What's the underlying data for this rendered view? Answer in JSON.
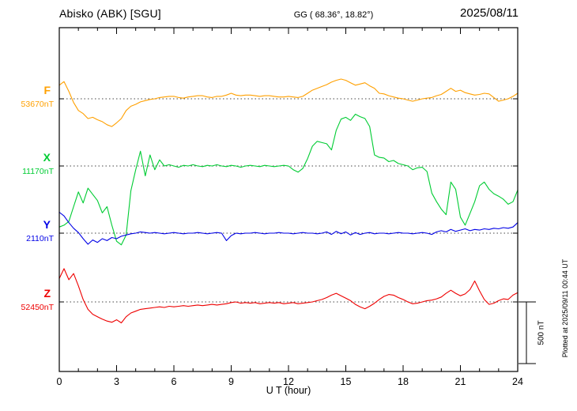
{
  "chart_data": {
    "type": "line",
    "station": "Abisko (ABK)  [SGU]",
    "coords": "GG ( 68.36°, 18.82°)",
    "date": "2025/08/11",
    "xlabel": "U T (hour)",
    "footnote": "Plotted at 2025/09/11 00:44 UT",
    "x_range": [
      0,
      24
    ],
    "x_ticks": [
      0,
      3,
      6,
      9,
      12,
      15,
      18,
      21,
      24
    ],
    "x_start": 0,
    "x_step_hours": 0.25,
    "units": "nT offset from component baseline",
    "scale_bar": {
      "label": "500 nT",
      "nT": 500
    },
    "series": [
      {
        "name": "F",
        "baseline_label": "53670nT",
        "color": "#FFA000",
        "values": [
          110,
          140,
          60,
          -30,
          -95,
          -120,
          -160,
          -150,
          -170,
          -185,
          -210,
          -225,
          -195,
          -160,
          -95,
          -60,
          -45,
          -25,
          -15,
          -5,
          0,
          10,
          15,
          20,
          20,
          10,
          5,
          15,
          20,
          25,
          25,
          15,
          10,
          20,
          20,
          30,
          45,
          30,
          25,
          30,
          30,
          25,
          20,
          25,
          25,
          20,
          15,
          15,
          20,
          15,
          10,
          20,
          45,
          70,
          85,
          100,
          115,
          135,
          150,
          160,
          150,
          130,
          110,
          120,
          130,
          105,
          85,
          45,
          40,
          25,
          15,
          5,
          0,
          -10,
          -20,
          -10,
          0,
          5,
          10,
          25,
          35,
          60,
          85,
          60,
          70,
          50,
          40,
          30,
          35,
          45,
          40,
          10,
          -20,
          -10,
          0,
          20,
          45
        ]
      },
      {
        "name": "X",
        "baseline_label": "11170nT",
        "color": "#00CC33",
        "values": [
          -495,
          -480,
          -450,
          -330,
          -210,
          -300,
          -180,
          -230,
          -280,
          -380,
          -330,
          -480,
          -610,
          -640,
          -560,
          -200,
          -30,
          120,
          -80,
          90,
          -30,
          50,
          0,
          10,
          0,
          -10,
          5,
          0,
          10,
          0,
          -5,
          5,
          0,
          10,
          0,
          -5,
          5,
          0,
          -10,
          0,
          5,
          0,
          -5,
          5,
          0,
          -5,
          0,
          5,
          0,
          -30,
          -50,
          -20,
          60,
          160,
          200,
          190,
          180,
          130,
          290,
          380,
          395,
          370,
          420,
          400,
          385,
          320,
          90,
          70,
          65,
          35,
          45,
          20,
          10,
          0,
          -30,
          -15,
          -10,
          -45,
          -220,
          -290,
          -350,
          -395,
          -130,
          -190,
          -415,
          -480,
          -385,
          -290,
          -160,
          -130,
          -190,
          -225,
          -245,
          -270,
          -310,
          -290,
          -195
        ]
      },
      {
        "name": "Y",
        "baseline_label": "2110nT",
        "color": "#0000E6",
        "values": [
          170,
          140,
          85,
          40,
          5,
          -45,
          -90,
          -55,
          -75,
          -45,
          -60,
          -35,
          -45,
          -25,
          -15,
          -5,
          0,
          10,
          5,
          0,
          5,
          0,
          -5,
          0,
          5,
          0,
          -5,
          0,
          0,
          5,
          0,
          -5,
          0,
          5,
          0,
          -60,
          -20,
          0,
          -5,
          0,
          0,
          5,
          0,
          -5,
          0,
          0,
          5,
          0,
          0,
          -5,
          0,
          5,
          0,
          0,
          -5,
          0,
          10,
          -10,
          15,
          -5,
          10,
          -15,
          5,
          -10,
          0,
          5,
          -5,
          0,
          0,
          -5,
          0,
          5,
          0,
          0,
          -5,
          0,
          5,
          0,
          -10,
          10,
          20,
          10,
          30,
          15,
          25,
          35,
          20,
          30,
          25,
          35,
          30,
          40,
          35,
          45,
          40,
          50,
          85
        ]
      },
      {
        "name": "Z",
        "baseline_label": "52450nT",
        "color": "#EE0000",
        "values": [
          190,
          270,
          180,
          230,
          130,
          20,
          -60,
          -100,
          -120,
          -140,
          -155,
          -165,
          -145,
          -170,
          -120,
          -90,
          -75,
          -60,
          -55,
          -50,
          -45,
          -40,
          -45,
          -35,
          -40,
          -35,
          -30,
          -35,
          -30,
          -25,
          -30,
          -25,
          -20,
          -25,
          -20,
          -15,
          -5,
          0,
          -10,
          -5,
          -10,
          -5,
          -15,
          -10,
          -5,
          -10,
          -5,
          -15,
          -10,
          -5,
          -15,
          -10,
          -5,
          0,
          10,
          20,
          35,
          55,
          70,
          50,
          30,
          10,
          -20,
          -40,
          -55,
          -35,
          -10,
          20,
          45,
          60,
          55,
          35,
          20,
          0,
          -15,
          -10,
          0,
          10,
          15,
          25,
          40,
          70,
          95,
          70,
          50,
          65,
          100,
          170,
          90,
          20,
          -20,
          -10,
          10,
          25,
          20,
          55,
          75
        ]
      }
    ]
  }
}
